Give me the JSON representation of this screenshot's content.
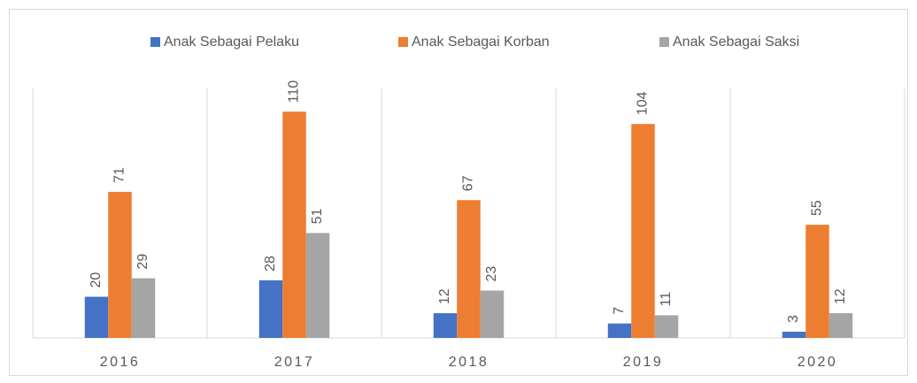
{
  "chart_data": {
    "type": "bar",
    "categories": [
      "2016",
      "2017",
      "2018",
      "2019",
      "2020"
    ],
    "series": [
      {
        "name": "Anak Sebagai Pelaku",
        "color": "#4472c4",
        "values": [
          20,
          28,
          12,
          7,
          3
        ]
      },
      {
        "name": "Anak Sebagai Korban",
        "color": "#ed7d31",
        "values": [
          71,
          110,
          67,
          104,
          55
        ]
      },
      {
        "name": "Anak Sebagai Saksi",
        "color": "#a5a5a5",
        "values": [
          29,
          51,
          23,
          11,
          12
        ]
      }
    ],
    "ylim": [
      0,
      120
    ],
    "legend": "top"
  }
}
